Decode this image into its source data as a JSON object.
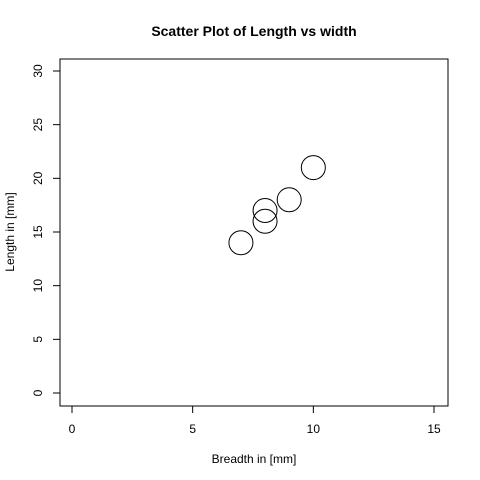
{
  "chart_data": {
    "type": "scatter",
    "title": "Scatter Plot of Length vs width",
    "xlabel": "Breadth in [mm]",
    "ylabel": "Length in [mm]",
    "xlim": [
      0,
      15
    ],
    "ylim": [
      0,
      30
    ],
    "x_ticks": [
      0,
      5,
      10,
      15
    ],
    "y_ticks": [
      0,
      5,
      10,
      15,
      20,
      25,
      30
    ],
    "marker": "open-circle",
    "grid": false,
    "points": [
      {
        "x": 7,
        "y": 14
      },
      {
        "x": 8,
        "y": 16
      },
      {
        "x": 8,
        "y": 17
      },
      {
        "x": 9,
        "y": 18
      },
      {
        "x": 10,
        "y": 21
      }
    ]
  }
}
